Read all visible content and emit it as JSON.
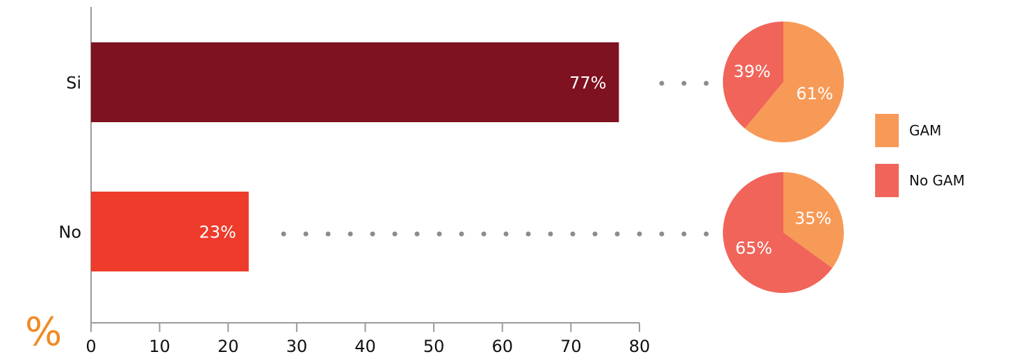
{
  "chart_data": [
    {
      "type": "bar",
      "orientation": "horizontal",
      "categories": [
        "Si",
        "No"
      ],
      "values": [
        77,
        23
      ],
      "value_labels": [
        "77%",
        "23%"
      ],
      "colors": [
        "#7f1220",
        "#ee3b2b"
      ],
      "xlim": [
        0,
        80
      ],
      "xticks": [
        0,
        10,
        20,
        30,
        40,
        50,
        60,
        70,
        80
      ],
      "xtick_labels": [
        "0",
        "10",
        "20",
        "30",
        "40",
        "50",
        "60",
        "70",
        "80"
      ],
      "unit_label": "%",
      "grid": false
    },
    {
      "type": "pie",
      "category": "Si",
      "slices": [
        {
          "name": "GAM",
          "value": 61,
          "label": "61%"
        },
        {
          "name": "No GAM",
          "value": 39,
          "label": "39%"
        }
      ]
    },
    {
      "type": "pie",
      "category": "No",
      "slices": [
        {
          "name": "GAM",
          "value": 35,
          "label": "35%"
        },
        {
          "name": "No GAM",
          "value": 65,
          "label": "65%"
        }
      ]
    }
  ],
  "legend": {
    "placement": "right",
    "items": [
      {
        "name": "GAM",
        "color": "#f79a57"
      },
      {
        "name": "No GAM",
        "color": "#f0645a"
      }
    ]
  }
}
